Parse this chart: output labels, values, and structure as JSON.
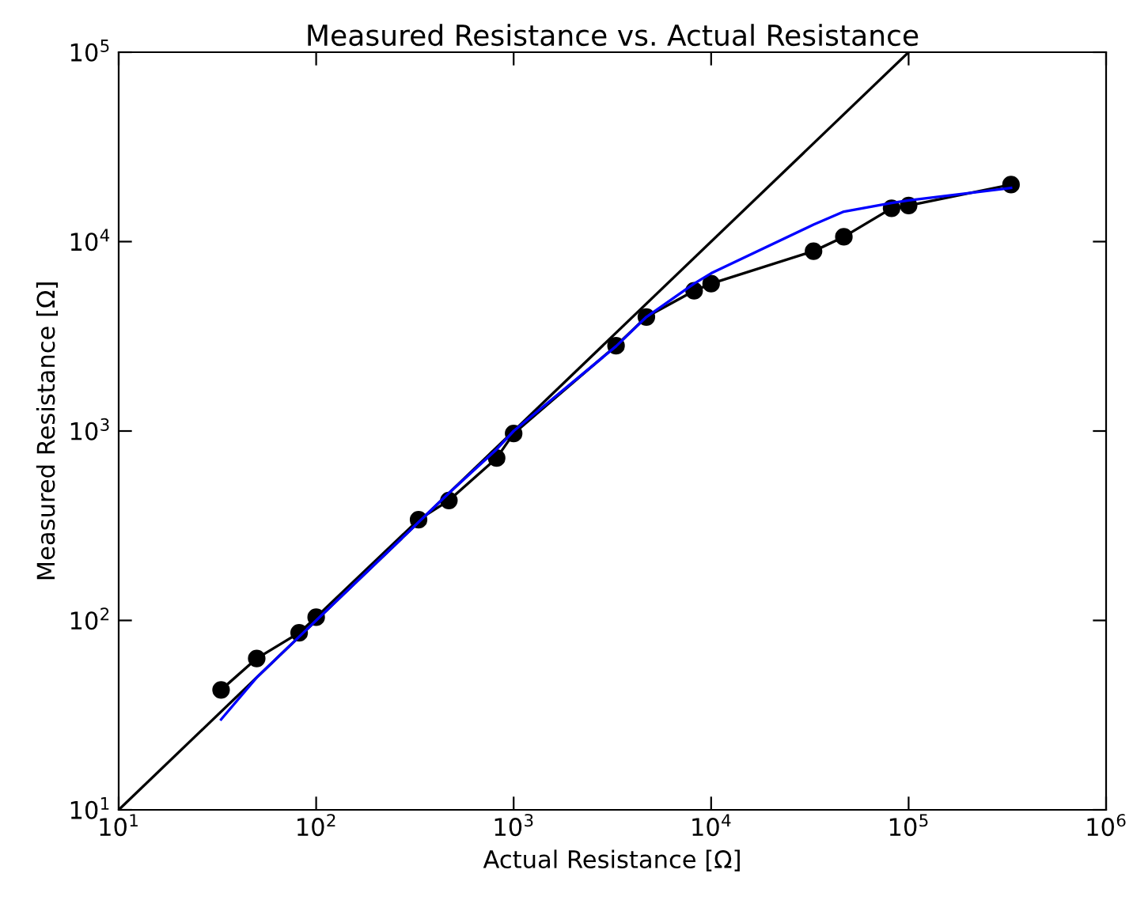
{
  "chart_data": {
    "type": "line",
    "title": "Measured Resistance vs. Actual Resistance",
    "xlabel": "Actual Resistance [Ω]",
    "ylabel": "Measured Resistance [Ω]",
    "log": "xy",
    "xlim": [
      10,
      1000000
    ],
    "ylim": [
      10,
      100000
    ],
    "xticks": [
      {
        "value": 10,
        "label": "10$^{1}$"
      },
      {
        "value": 100,
        "label": "10$^{2}$"
      },
      {
        "value": 1000,
        "label": "10$^{3}$"
      },
      {
        "value": 10000,
        "label": "10$^{4}$"
      },
      {
        "value": 100000,
        "label": "10$^{5}$"
      },
      {
        "value": 1000000,
        "label": "10$^{6}$"
      }
    ],
    "yticks": [
      {
        "value": 10,
        "label": "10$^{1}$"
      },
      {
        "value": 100,
        "label": "10$^{2}$"
      },
      {
        "value": 1000,
        "label": "10$^{3}$"
      },
      {
        "value": 10000,
        "label": "10$^{4}$"
      },
      {
        "value": 100000,
        "label": "10$^{5}$"
      }
    ],
    "grid": false,
    "legend": false,
    "series": [
      {
        "color": "#000000",
        "marker": "none",
        "x": [
          10,
          100000
        ],
        "values": [
          10,
          100000
        ]
      },
      {
        "color": "#000000",
        "marker": "circle",
        "x": [
          33,
          50,
          82,
          100,
          330,
          470,
          820,
          1000,
          3300,
          4700,
          8200,
          10000,
          33000,
          47000,
          82000,
          100000,
          330000
        ],
        "values": [
          43,
          63,
          86,
          104,
          340,
          430,
          720,
          970,
          2820,
          4000,
          5500,
          6000,
          8900,
          10600,
          15000,
          15500,
          20000
        ]
      },
      {
        "color": "#0000ff",
        "marker": "none",
        "x": [
          33,
          50,
          82,
          100,
          330,
          470,
          820,
          1000,
          3300,
          4700,
          8200,
          10000,
          33000,
          47000,
          82000,
          100000,
          330000
        ],
        "values": [
          30,
          50,
          82,
          100,
          330,
          470,
          800,
          1000,
          2800,
          4000,
          6000,
          6800,
          12300,
          14400,
          16000,
          16500,
          19200
        ]
      }
    ]
  }
}
